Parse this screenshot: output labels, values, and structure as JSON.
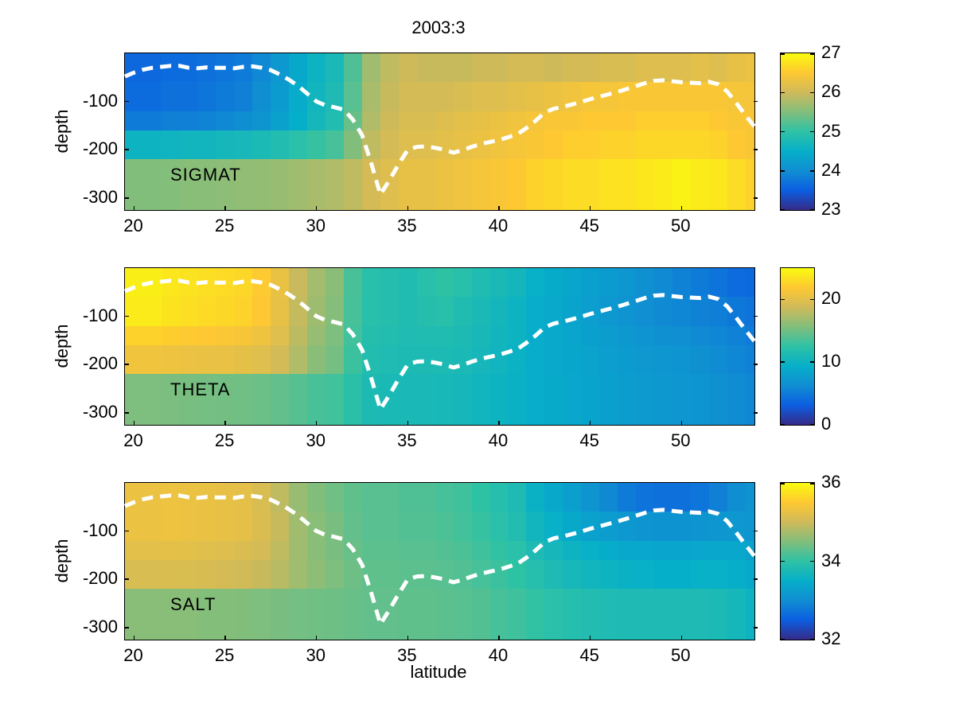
{
  "chart_data": {
    "type": "heatmap",
    "title": "2003:3",
    "xlabel": "latitude",
    "ylabel": "depth",
    "x_range": [
      19.5,
      54
    ],
    "x_ticks": [
      20,
      25,
      30,
      35,
      40,
      45,
      50
    ],
    "y_range": [
      -325,
      0
    ],
    "y_ticks": [
      -100,
      -200,
      -300
    ],
    "grid": {
      "lat_start": 19.5,
      "lat_step": 1,
      "n_cols": 35,
      "row_depth_edges": [
        0,
        -60,
        -120,
        -160,
        -220,
        -325
      ]
    },
    "colormap_name": "parula",
    "colormap_stops": [
      "#352a87",
      "#0c5ee1",
      "#108ed2",
      "#06afc9",
      "#2ec2a5",
      "#81be7c",
      "#cfba5a",
      "#fec832",
      "#f9fb0e"
    ],
    "overlay_line": {
      "label": "mixed-layer-depth-line",
      "color": "#ffffff",
      "style": "dashed",
      "lat": [
        19.5,
        20,
        20.5,
        21,
        21.5,
        22,
        22.5,
        23,
        23.5,
        24,
        24.5,
        25,
        25.5,
        26,
        26.5,
        27,
        27.5,
        28,
        28.5,
        29,
        29.5,
        30,
        30.5,
        31,
        31.5,
        32,
        32.5,
        33,
        33.5,
        34,
        34.5,
        35,
        35.5,
        36,
        36.5,
        37,
        37.5,
        38,
        38.5,
        39,
        39.5,
        40,
        40.5,
        41,
        41.5,
        42,
        42.5,
        43,
        43.5,
        44,
        44.5,
        45,
        45.5,
        46,
        46.5,
        47,
        47.5,
        48,
        48.5,
        49,
        49.5,
        50,
        50.5,
        51,
        51.5,
        52,
        52.5,
        53,
        53.5,
        54
      ],
      "depth": [
        -48,
        -40,
        -34,
        -30,
        -28,
        -26,
        -26,
        -30,
        -31,
        -29,
        -30,
        -30,
        -31,
        -28,
        -27,
        -30,
        -35,
        -44,
        -55,
        -68,
        -84,
        -100,
        -108,
        -112,
        -117,
        -138,
        -170,
        -228,
        -293,
        -263,
        -230,
        -200,
        -194,
        -193,
        -196,
        -200,
        -206,
        -201,
        -194,
        -188,
        -184,
        -180,
        -174,
        -168,
        -155,
        -140,
        -123,
        -115,
        -111,
        -106,
        -101,
        -95,
        -90,
        -85,
        -80,
        -74,
        -68,
        -62,
        -57,
        -56,
        -58,
        -60,
        -61,
        -62,
        -59,
        -64,
        -79,
        -103,
        -128,
        -152
      ]
    },
    "panels": [
      {
        "label": "SIGMAT",
        "colorbar_range": [
          23,
          27
        ],
        "colorbar_ticks": [
          23,
          24,
          25,
          26,
          27
        ],
        "values": [
          [
            23.6,
            23.6,
            23.65,
            23.65,
            23.7,
            23.75,
            23.8,
            23.95,
            24.15,
            24.4,
            24.6,
            24.75,
            25.2,
            25.7,
            25.9,
            26.0,
            25.95,
            25.95,
            25.95,
            26.0,
            26.0,
            26.05,
            26.05,
            26.0,
            26.05,
            26.05,
            26.1,
            26.1,
            26.15,
            26.15,
            26.15,
            26.2,
            26.15,
            26.25,
            26.3
          ],
          [
            23.65,
            23.65,
            23.7,
            23.7,
            23.75,
            23.8,
            23.85,
            24.0,
            24.2,
            24.45,
            24.65,
            24.8,
            25.25,
            25.75,
            25.95,
            26.05,
            26.05,
            26.05,
            26.1,
            26.15,
            26.15,
            26.2,
            26.25,
            26.3,
            26.35,
            26.4,
            26.4,
            26.45,
            26.45,
            26.45,
            26.45,
            26.45,
            26.45,
            26.4,
            26.4
          ],
          [
            23.8,
            23.8,
            23.85,
            23.85,
            23.9,
            23.95,
            24.0,
            24.1,
            24.3,
            24.5,
            24.7,
            24.85,
            25.35,
            25.8,
            26.0,
            26.1,
            26.1,
            26.15,
            26.2,
            26.25,
            26.3,
            26.35,
            26.4,
            26.45,
            26.45,
            26.5,
            26.5,
            26.5,
            26.55,
            26.55,
            26.55,
            26.55,
            26.5,
            26.45,
            26.45
          ],
          [
            24.6,
            24.6,
            24.62,
            24.65,
            24.65,
            24.7,
            24.72,
            24.78,
            24.85,
            24.95,
            25.05,
            25.15,
            25.5,
            25.9,
            26.05,
            26.15,
            26.15,
            26.2,
            26.25,
            26.3,
            26.35,
            26.4,
            26.45,
            26.5,
            26.55,
            26.55,
            26.6,
            26.6,
            26.65,
            26.65,
            26.65,
            26.65,
            26.6,
            26.5,
            26.45
          ],
          [
            25.5,
            25.5,
            25.52,
            25.55,
            25.55,
            25.58,
            25.6,
            25.62,
            25.65,
            25.7,
            25.75,
            25.8,
            25.9,
            26.05,
            26.15,
            26.25,
            26.25,
            26.3,
            26.35,
            26.4,
            26.45,
            26.5,
            26.6,
            26.65,
            26.7,
            26.7,
            26.75,
            26.75,
            26.8,
            26.85,
            26.9,
            26.85,
            26.8,
            26.7,
            26.6
          ]
        ]
      },
      {
        "label": "THETA",
        "colorbar_range": [
          0,
          25
        ],
        "colorbar_ticks": [
          0,
          10,
          20
        ],
        "values": [
          [
            24.2,
            24.2,
            23.8,
            23.5,
            23.2,
            23.0,
            22.8,
            22.0,
            20.5,
            18.5,
            17.0,
            16.0,
            13.5,
            12.0,
            11.8,
            11.5,
            12.0,
            12.5,
            12.0,
            11.5,
            11.0,
            10.5,
            9.5,
            9.0,
            8.5,
            8.0,
            7.5,
            7.0,
            6.5,
            6.0,
            5.5,
            5.0,
            4.5,
            4.0,
            3.8
          ],
          [
            24.0,
            24.0,
            23.6,
            23.3,
            23.0,
            22.8,
            22.5,
            21.8,
            20.3,
            18.3,
            16.8,
            15.8,
            13.4,
            12.0,
            11.8,
            11.5,
            11.8,
            12.0,
            11.5,
            11.0,
            10.5,
            10.0,
            9.2,
            8.8,
            8.3,
            7.8,
            7.3,
            6.8,
            6.3,
            6.0,
            5.8,
            5.5,
            5.2,
            4.8,
            4.5
          ],
          [
            22.5,
            22.5,
            22.2,
            22.0,
            21.8,
            21.6,
            21.4,
            20.8,
            19.8,
            18.0,
            16.5,
            15.5,
            13.2,
            11.8,
            11.6,
            11.4,
            11.5,
            11.5,
            11.2,
            10.8,
            10.4,
            10.0,
            9.2,
            8.8,
            8.4,
            8.0,
            7.6,
            7.2,
            6.8,
            6.5,
            6.3,
            6.0,
            5.8,
            5.4,
            5.0
          ],
          [
            21.0,
            21.0,
            20.8,
            20.6,
            20.5,
            20.4,
            20.2,
            19.8,
            19.0,
            17.5,
            16.0,
            15.2,
            13.0,
            11.6,
            11.4,
            11.2,
            11.2,
            11.2,
            11.0,
            10.6,
            10.2,
            9.8,
            9.2,
            8.8,
            8.5,
            8.2,
            7.8,
            7.5,
            7.2,
            7.0,
            6.8,
            6.5,
            6.2,
            5.8,
            5.4
          ],
          [
            15.5,
            15.5,
            15.4,
            15.3,
            15.2,
            15.1,
            15.0,
            14.8,
            14.5,
            14.0,
            13.5,
            13.2,
            12.2,
            11.2,
            11.0,
            10.9,
            10.9,
            10.8,
            10.6,
            10.3,
            10.0,
            9.7,
            9.2,
            8.9,
            8.6,
            8.3,
            8.0,
            7.7,
            7.4,
            7.2,
            7.0,
            6.8,
            6.5,
            6.2,
            5.8
          ]
        ]
      },
      {
        "label": "SALT",
        "colorbar_range": [
          32,
          36
        ],
        "colorbar_ticks": [
          32,
          34,
          36
        ],
        "values": [
          [
            35.3,
            35.3,
            35.32,
            35.3,
            35.28,
            35.25,
            35.22,
            35.1,
            34.9,
            34.65,
            34.5,
            34.4,
            34.3,
            34.25,
            34.25,
            34.2,
            34.2,
            34.15,
            34.1,
            34.0,
            33.9,
            33.8,
            33.55,
            33.4,
            33.25,
            33.1,
            32.95,
            32.8,
            32.72,
            32.7,
            32.7,
            32.75,
            32.85,
            33.0,
            33.1
          ],
          [
            35.3,
            35.3,
            35.32,
            35.3,
            35.28,
            35.25,
            35.22,
            35.12,
            34.95,
            34.7,
            34.55,
            34.45,
            34.32,
            34.25,
            34.25,
            34.22,
            34.22,
            34.18,
            34.12,
            34.05,
            33.95,
            33.85,
            33.65,
            33.52,
            33.4,
            33.3,
            33.22,
            33.15,
            33.1,
            33.08,
            33.08,
            33.1,
            33.12,
            33.15,
            33.12
          ],
          [
            35.2,
            35.2,
            35.22,
            35.2,
            35.18,
            35.15,
            35.12,
            35.05,
            34.9,
            34.7,
            34.55,
            34.45,
            34.35,
            34.28,
            34.28,
            34.25,
            34.25,
            34.22,
            34.18,
            34.1,
            34.02,
            33.95,
            33.8,
            33.7,
            33.6,
            33.52,
            33.45,
            33.4,
            33.38,
            33.35,
            33.35,
            33.38,
            33.4,
            33.38,
            33.3
          ],
          [
            35.1,
            35.1,
            35.12,
            35.1,
            35.08,
            35.05,
            35.02,
            34.95,
            34.85,
            34.7,
            34.58,
            34.48,
            34.38,
            34.3,
            34.3,
            34.28,
            34.28,
            34.25,
            34.22,
            34.15,
            34.08,
            34.0,
            33.9,
            33.8,
            33.72,
            33.65,
            33.6,
            33.55,
            33.52,
            33.5,
            33.5,
            33.52,
            33.52,
            33.48,
            33.4
          ],
          [
            34.55,
            34.55,
            34.55,
            34.55,
            34.52,
            34.52,
            34.5,
            34.48,
            34.45,
            34.42,
            34.4,
            34.38,
            34.35,
            34.32,
            34.32,
            34.3,
            34.3,
            34.28,
            34.25,
            34.22,
            34.15,
            34.1,
            34.02,
            33.95,
            33.9,
            33.85,
            33.82,
            33.8,
            33.8,
            33.8,
            33.8,
            33.8,
            33.78,
            33.7,
            33.6
          ]
        ]
      }
    ]
  },
  "colors": {
    "background": "#ffffff",
    "axis": "#000000",
    "dashed_line": "#ffffff"
  }
}
